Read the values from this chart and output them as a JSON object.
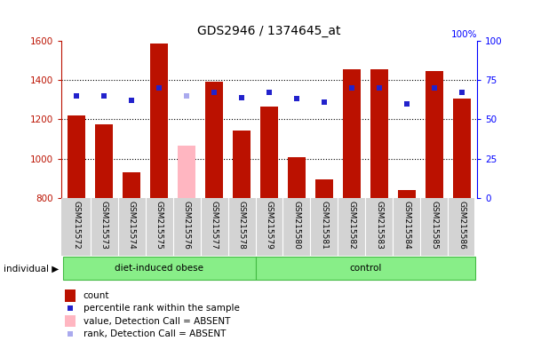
{
  "title": "GDS2946 / 1374645_at",
  "samples": [
    "GSM215572",
    "GSM215573",
    "GSM215574",
    "GSM215575",
    "GSM215576",
    "GSM215577",
    "GSM215578",
    "GSM215579",
    "GSM215580",
    "GSM215581",
    "GSM215582",
    "GSM215583",
    "GSM215584",
    "GSM215585",
    "GSM215586"
  ],
  "counts": [
    1220,
    1175,
    930,
    1585,
    1065,
    1390,
    1145,
    1265,
    1005,
    895,
    1455,
    1455,
    840,
    1445,
    1305
  ],
  "absent": [
    false,
    false,
    false,
    false,
    true,
    false,
    false,
    false,
    false,
    false,
    false,
    false,
    false,
    false,
    false
  ],
  "percentile_ranks": [
    65,
    65,
    62,
    70,
    65,
    67,
    64,
    67,
    63,
    61,
    70,
    70,
    60,
    70,
    67
  ],
  "absent_rank": [
    false,
    false,
    false,
    false,
    true,
    false,
    false,
    false,
    false,
    false,
    false,
    false,
    false,
    false,
    false
  ],
  "groups": [
    "diet-induced obese",
    "diet-induced obese",
    "diet-induced obese",
    "diet-induced obese",
    "diet-induced obese",
    "diet-induced obese",
    "diet-induced obese",
    "control",
    "control",
    "control",
    "control",
    "control",
    "control",
    "control",
    "control"
  ],
  "ymin": 800,
  "ymax": 1600,
  "yticks_left": [
    800,
    1000,
    1200,
    1400,
    1600
  ],
  "yticks_right": [
    0,
    25,
    50,
    75,
    100
  ],
  "grid_lines": [
    1000,
    1200,
    1400
  ],
  "bar_color_normal": "#BB1100",
  "bar_color_absent": "#FFB6C1",
  "dot_color_normal": "#2222CC",
  "dot_color_absent": "#AAAAEE",
  "sample_bg_color": "#D3D3D3",
  "group_fill_color": "#88EE88",
  "group_edge_color": "#44BB44",
  "plot_bg": "#FFFFFF",
  "legend_items": [
    {
      "label": "count",
      "type": "bar",
      "color": "#BB1100"
    },
    {
      "label": "percentile rank within the sample",
      "type": "square",
      "color": "#2222CC"
    },
    {
      "label": "value, Detection Call = ABSENT",
      "type": "bar",
      "color": "#FFB6C1"
    },
    {
      "label": "rank, Detection Call = ABSENT",
      "type": "square",
      "color": "#AAAAEE"
    }
  ]
}
